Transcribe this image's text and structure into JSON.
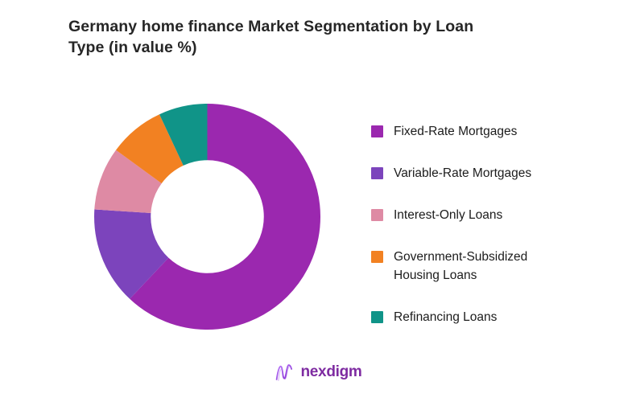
{
  "header": {
    "line1": "Germany home finance Market Segmentation by Loan",
    "line2": "Type (in value %)"
  },
  "chart_data": {
    "type": "pie",
    "subtype": "donut",
    "title": "Germany home finance Market Segmentation by Loan Type (in value %)",
    "labels": [
      "Fixed-Rate Mortgages",
      "Variable-Rate Mortgages",
      "Interest-Only Loans",
      "Government-Subsidized Housing Loans",
      "Refinancing Loans"
    ],
    "values": [
      62,
      14,
      9,
      8,
      7
    ],
    "unit": "percent of value",
    "colors": [
      "#9b28af",
      "#7c44bc",
      "#de8aa4",
      "#f28122",
      "#109488"
    ],
    "start_angle_deg_from_top": 0,
    "direction": "clockwise",
    "inner_radius_ratio": 0.51,
    "legend_position": "right",
    "data_labels_shown": false,
    "note": "segment percentages estimated from arc angles; no numeric labels are rendered in the chart"
  },
  "legend": {
    "items": [
      {
        "label": "Fixed-Rate Mortgages",
        "color": "#9b28af"
      },
      {
        "label": "Variable-Rate Mortgages",
        "color": "#7c44bc"
      },
      {
        "label": "Interest-Only Loans",
        "color": "#de8aa4"
      },
      {
        "label": "Government-Subsidized Housing Loans",
        "color": "#f28122"
      },
      {
        "label": "Refinancing Loans",
        "color": "#109488"
      }
    ]
  },
  "brand": {
    "name": "nexdigm",
    "logo_colors": {
      "gradient_start": "#c084fc",
      "gradient_end": "#7e22ce",
      "text": "#7e2ba1"
    }
  }
}
